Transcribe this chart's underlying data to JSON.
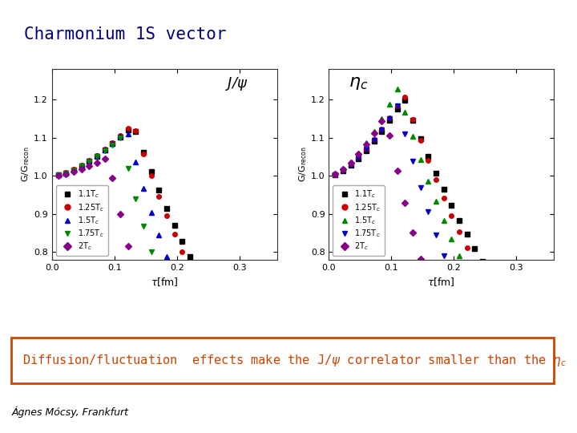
{
  "title": "Charmonium 1S vector",
  "title_bg": "#d0d0e0",
  "title_color": "#000080",
  "bg_color": "#ffffff",
  "bottom_text_color": "#cc4400",
  "bottom_box_color": "#cc4400",
  "ylim": [
    0.78,
    1.28
  ],
  "xlim": [
    0.0,
    0.36
  ],
  "yticks": [
    0.8,
    0.9,
    1.0,
    1.1,
    1.2
  ],
  "xticks": [
    0.0,
    0.1,
    0.2,
    0.3
  ],
  "series_jpsi": [
    {
      "label": "1.1T$_c$",
      "color": "#000000",
      "marker": "s",
      "peak_tau": 0.13,
      "peak_val": 1.135,
      "drop_rate": 4.0
    },
    {
      "label": "1.25T$_c$",
      "color": "#cc0000",
      "marker": "o",
      "peak_tau": 0.13,
      "peak_val": 1.14,
      "drop_rate": 4.5
    },
    {
      "label": "1.5T$_c$",
      "color": "#0000cc",
      "marker": "^",
      "peak_tau": 0.12,
      "peak_val": 1.12,
      "drop_rate": 5.5
    },
    {
      "label": "1.75T$_c$",
      "color": "#008800",
      "marker": "v",
      "peak_tau": 0.11,
      "peak_val": 1.1,
      "drop_rate": 6.5
    },
    {
      "label": "2T$_c$",
      "color": "#880088",
      "marker": "D",
      "peak_tau": 0.09,
      "peak_val": 1.05,
      "drop_rate": 8.0
    }
  ],
  "series_etac": [
    {
      "label": "1.1T$_c$",
      "color": "#000000",
      "marker": "s",
      "peak_tau": 0.12,
      "peak_val": 1.205,
      "drop_rate": 3.5
    },
    {
      "label": "1.25T$_c$",
      "color": "#cc0000",
      "marker": "o",
      "peak_tau": 0.12,
      "peak_val": 1.215,
      "drop_rate": 4.0
    },
    {
      "label": "1.5T$_c$",
      "color": "#008800",
      "marker": "^",
      "peak_tau": 0.11,
      "peak_val": 1.23,
      "drop_rate": 4.5
    },
    {
      "label": "1.75T$_c$",
      "color": "#0000cc",
      "marker": "v",
      "peak_tau": 0.11,
      "peak_val": 1.185,
      "drop_rate": 5.5
    },
    {
      "label": "2T$_c$",
      "color": "#880088",
      "marker": "D",
      "peak_tau": 0.09,
      "peak_val": 1.16,
      "drop_rate": 7.0
    }
  ]
}
